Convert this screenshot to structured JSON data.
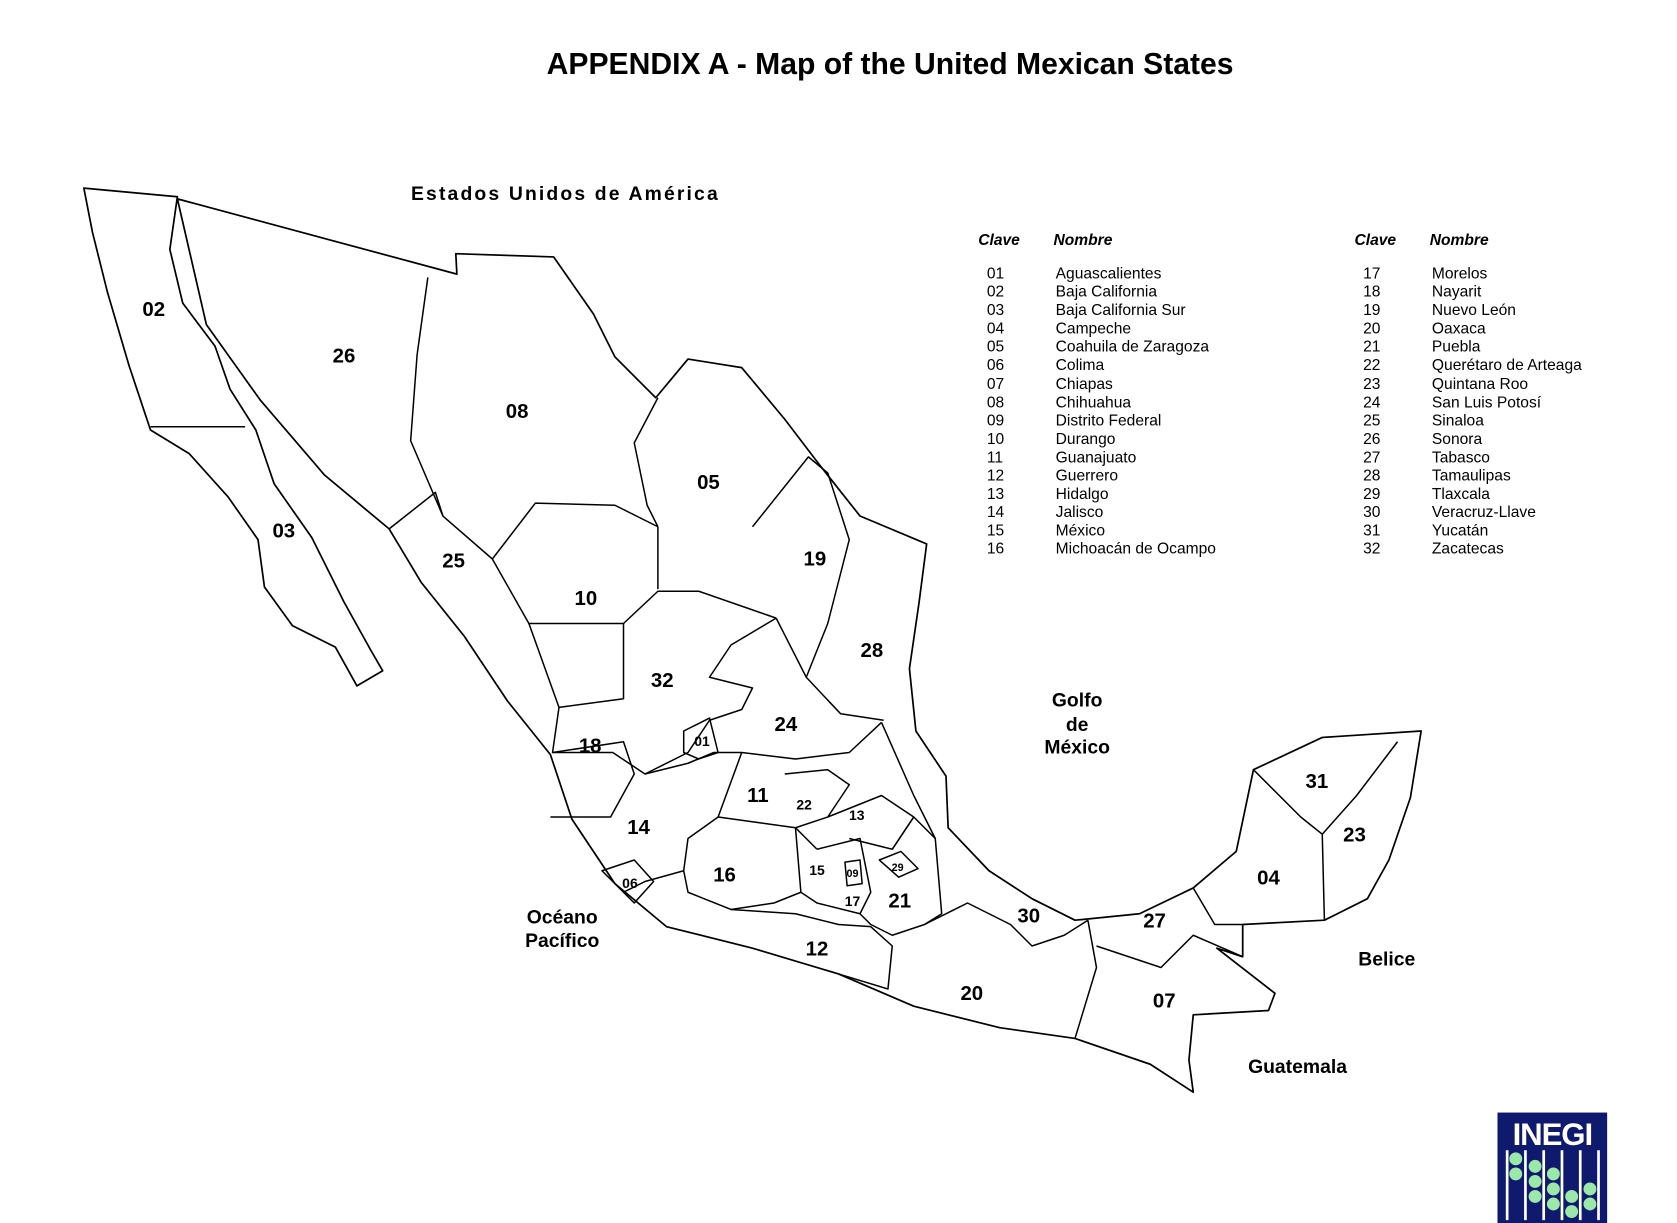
{
  "title": "APPENDIX A - Map of the United Mexican States",
  "map": {
    "neighbors": {
      "usa": "Estados Unidos de América",
      "gulf": [
        "Golfo",
        "de",
        "México"
      ],
      "pacific": [
        "Océano",
        "Pacífico"
      ],
      "belize": "Belice",
      "guatemala": "Guatemala"
    },
    "labels": [
      "01",
      "02",
      "03",
      "04",
      "05",
      "06",
      "07",
      "08",
      "09",
      "10",
      "11",
      "12",
      "13",
      "14",
      "15",
      "16",
      "17",
      "18",
      "19",
      "20",
      "21",
      "22",
      "23",
      "24",
      "25",
      "26",
      "27",
      "28",
      "29",
      "30",
      "31",
      "32"
    ]
  },
  "legend": {
    "header_code": "Clave",
    "header_name": "Nombre",
    "left": [
      {
        "code": "01",
        "name": "Aguascalientes"
      },
      {
        "code": "02",
        "name": "Baja California"
      },
      {
        "code": "03",
        "name": "Baja California Sur"
      },
      {
        "code": "04",
        "name": "Campeche"
      },
      {
        "code": "05",
        "name": "Coahuila de Zaragoza"
      },
      {
        "code": "06",
        "name": "Colima"
      },
      {
        "code": "07",
        "name": "Chiapas"
      },
      {
        "code": "08",
        "name": "Chihuahua"
      },
      {
        "code": "09",
        "name": "Distrito Federal"
      },
      {
        "code": "10",
        "name": "Durango"
      },
      {
        "code": "11",
        "name": "Guanajuato"
      },
      {
        "code": "12",
        "name": "Guerrero"
      },
      {
        "code": "13",
        "name": "Hidalgo"
      },
      {
        "code": "14",
        "name": "Jalisco"
      },
      {
        "code": "15",
        "name": "México"
      },
      {
        "code": "16",
        "name": "Michoacán de Ocampo"
      }
    ],
    "right": [
      {
        "code": "17",
        "name": "Morelos"
      },
      {
        "code": "18",
        "name": "Nayarit"
      },
      {
        "code": "19",
        "name": "Nuevo León"
      },
      {
        "code": "20",
        "name": "Oaxaca"
      },
      {
        "code": "21",
        "name": "Puebla"
      },
      {
        "code": "22",
        "name": "Querétaro de Arteaga"
      },
      {
        "code": "23",
        "name": "Quintana Roo"
      },
      {
        "code": "24",
        "name": "San Luis Potosí"
      },
      {
        "code": "25",
        "name": "Sinaloa"
      },
      {
        "code": "26",
        "name": "Sonora"
      },
      {
        "code": "27",
        "name": "Tabasco"
      },
      {
        "code": "28",
        "name": "Tamaulipas"
      },
      {
        "code": "29",
        "name": "Tlaxcala"
      },
      {
        "code": "30",
        "name": "Veracruz-Llave"
      },
      {
        "code": "31",
        "name": "Yucatán"
      },
      {
        "code": "32",
        "name": "Zacatecas"
      }
    ]
  },
  "logo": {
    "text": "INEGI",
    "background": "#0f1a6e",
    "dots": "#9be8a8"
  }
}
